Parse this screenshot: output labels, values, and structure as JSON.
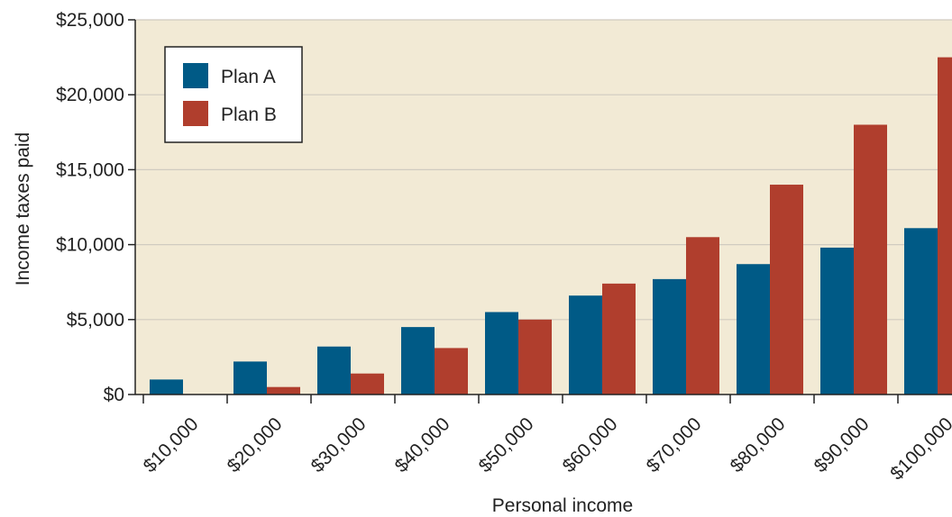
{
  "chart_data": {
    "type": "bar",
    "xlabel": "Personal income",
    "ylabel": "Income taxes paid",
    "categories": [
      "$10,000",
      "$20,000",
      "$30,000",
      "$40,000",
      "$50,000",
      "$60,000",
      "$70,000",
      "$80,000",
      "$90,000",
      "$100,000"
    ],
    "y_ticks": [
      0,
      5000,
      10000,
      15000,
      20000,
      25000
    ],
    "y_tick_labels": [
      "$0",
      "$5,000",
      "$10,000",
      "$15,000",
      "$20,000",
      "$25,000"
    ],
    "ylim": [
      0,
      25000
    ],
    "grid": true,
    "legend_position": "top-left",
    "series": [
      {
        "name": "Plan A",
        "color": "#005a86",
        "values": [
          1000,
          2200,
          3200,
          4500,
          5500,
          6600,
          7700,
          8700,
          9800,
          11100
        ]
      },
      {
        "name": "Plan B",
        "color": "#b03e2d",
        "values": [
          0,
          500,
          1400,
          3100,
          5000,
          7400,
          10500,
          14000,
          18000,
          22500
        ]
      }
    ],
    "colors": {
      "plot_background": "#f2ead5",
      "gridline": "#d0cbc0"
    }
  }
}
